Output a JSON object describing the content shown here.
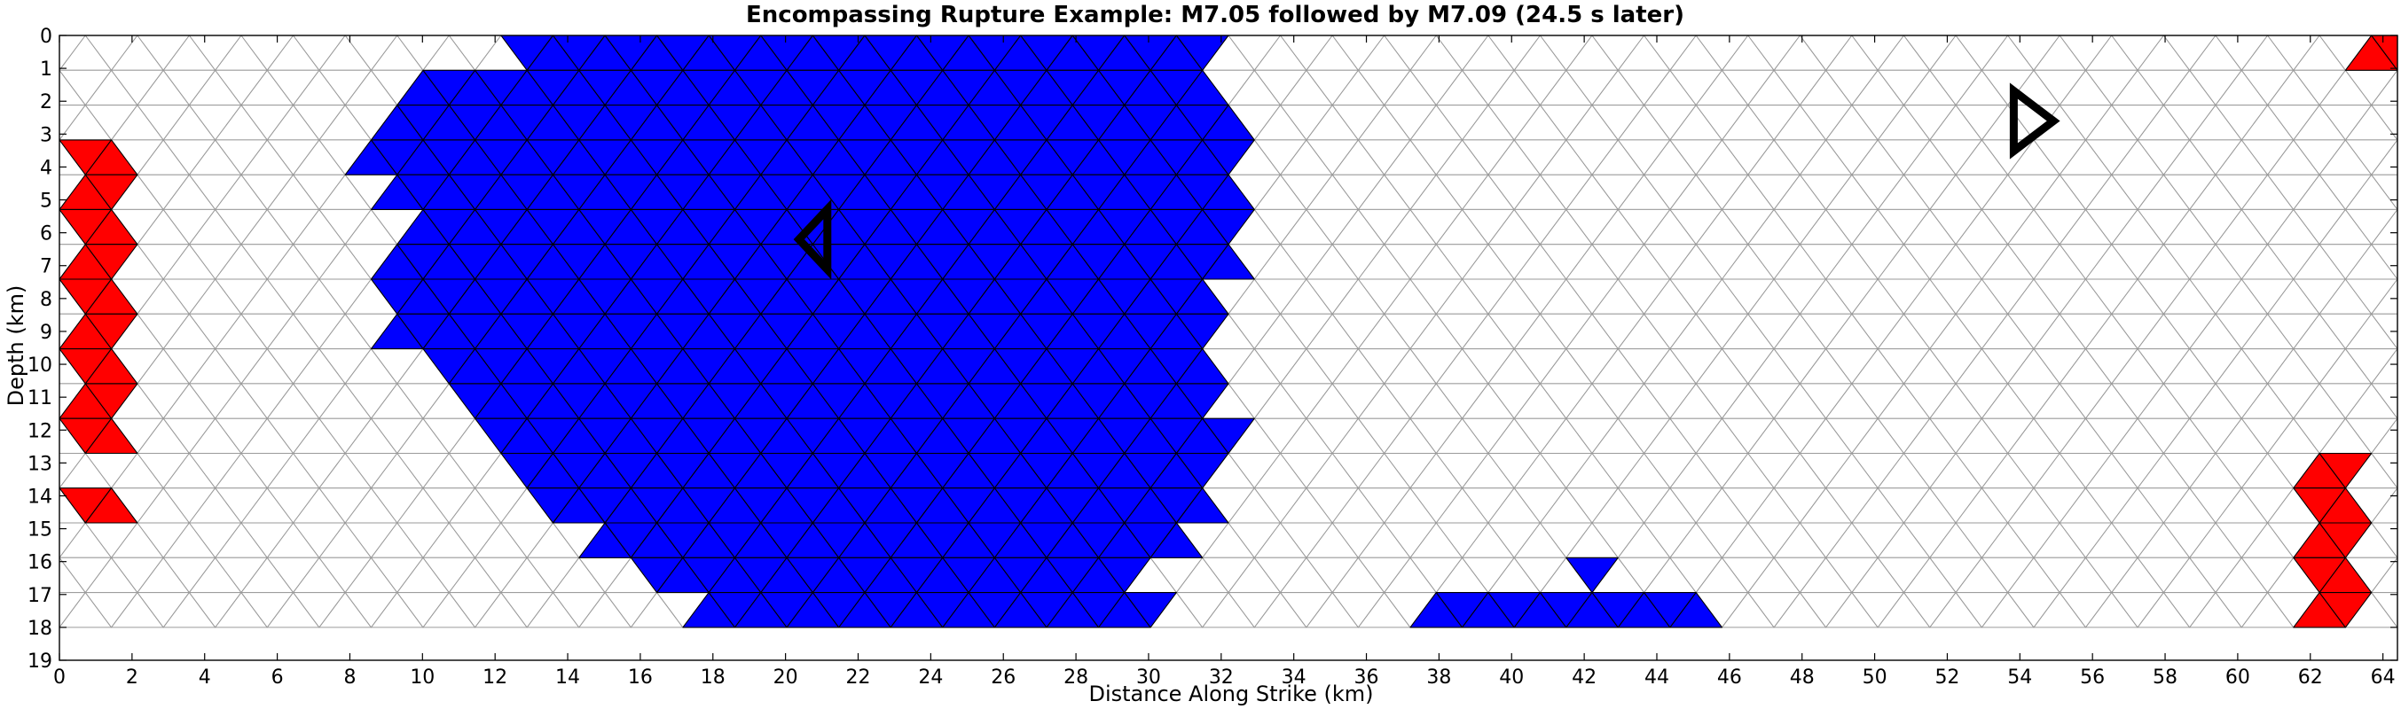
{
  "chart_data": {
    "type": "heatmap",
    "title": "Encompassing Rupture Example: M7.05 followed by M7.09 (24.5 s later)",
    "xlabel": "Distance Along Strike (km)",
    "ylabel": "Depth (km)",
    "xlim": [
      0,
      64.4
    ],
    "ylim": [
      19,
      0
    ],
    "xticks": [
      "0",
      "2",
      "4",
      "6",
      "8",
      "10",
      "12",
      "14",
      "16",
      "18",
      "20",
      "22",
      "24",
      "26",
      "28",
      "30",
      "32",
      "34",
      "36",
      "38",
      "40",
      "42",
      "44",
      "46",
      "48",
      "50",
      "52",
      "54",
      "56",
      "58",
      "60",
      "62",
      "64"
    ],
    "yticks": [
      "0",
      "1",
      "2",
      "3",
      "4",
      "5",
      "6",
      "7",
      "8",
      "9",
      "10",
      "11",
      "12",
      "13",
      "14",
      "15",
      "16",
      "17",
      "18",
      "19"
    ],
    "grid": false,
    "mesh": {
      "x_min_km": 0,
      "x_max_km": 64.4,
      "y_min_km": 0,
      "y_max_km": 18,
      "columns": 45,
      "rows": 17
    },
    "colors": {
      "first_event_only": "#ff0000",
      "both_events": "#ff00ff",
      "second_event_only": "#0000ff",
      "unruptured": "#ffffff",
      "edge_ruptured": "#000000",
      "edge_unruptured": "#9a9a9a"
    },
    "regions": {
      "first_event_columns": [
        [
          0,
          27
        ],
        [
          27,
          26
        ],
        [
          27,
          27
        ],
        [
          31,
          29
        ],
        [
          31,
          32
        ],
        [
          31,
          31
        ],
        [
          31,
          30
        ],
        [
          27,
          29
        ],
        [
          27,
          31
        ],
        [
          25,
          30
        ],
        [
          27,
          29
        ],
        [
          25,
          29
        ],
        [
          27,
          29
        ],
        [
          25,
          29
        ],
        [
          27,
          28
        ],
        [
          25,
          27
        ],
        [
          25,
          27
        ],
        [
          25,
          25
        ],
        [
          27,
          24
        ],
        [
          27,
          25
        ],
        [
          27,
          26
        ],
        [
          29,
          23
        ],
        [
          31,
          23
        ],
        [
          31,
          22
        ],
        [
          31,
          21
        ],
        [
          31,
          22
        ],
        [
          29,
          21
        ],
        [
          31,
          21
        ],
        [
          29,
          21
        ],
        [
          31,
          21
        ],
        [
          29,
          22
        ],
        [
          29,
          19
        ],
        [
          31,
          23
        ],
        [
          29,
          25
        ],
        [
          31,
          23
        ],
        [
          31,
          24
        ],
        [
          31,
          24
        ],
        [
          31,
          25
        ],
        [
          31,
          24
        ],
        [
          33,
          25
        ],
        [
          33,
          25
        ],
        [
          31,
          24
        ],
        [
          34,
          21
        ],
        [
          12,
          19
        ],
        [
          0,
          0
        ]
      ],
      "second_event_rows": [
        [
          17,
          43
        ],
        [
          13,
          43
        ],
        [
          12,
          44
        ],
        [
          11,
          44
        ],
        [
          12,
          44
        ],
        [
          13,
          44
        ],
        [
          12,
          44
        ],
        [
          12,
          43
        ],
        [
          12,
          43
        ],
        [
          14,
          43
        ],
        [
          15,
          43
        ],
        [
          16,
          44
        ],
        [
          17,
          43
        ],
        [
          18,
          43
        ],
        [
          20,
          42
        ],
        [
          22,
          40
        ],
        [
          24,
          39
        ]
      ],
      "second_event_only_cells": [
        [
          40,
          16
        ],
        [
          41,
          16
        ],
        [
          41,
          17
        ],
        [
          42,
          17
        ],
        [
          43,
          17
        ],
        [
          44,
          17
        ],
        [
          45,
          17
        ],
        [
          46,
          17
        ],
        [
          47,
          17
        ],
        [
          48,
          17
        ],
        [
          50,
          17
        ],
        [
          51,
          17
        ],
        [
          52,
          17
        ],
        [
          53,
          17
        ],
        [
          54,
          17
        ],
        [
          55,
          17
        ],
        [
          56,
          17
        ],
        [
          57,
          17
        ],
        [
          58,
          17
        ],
        [
          52,
          16
        ],
        [
          53,
          16
        ],
        [
          54,
          16
        ],
        [
          55,
          16
        ],
        [
          56,
          16
        ],
        [
          57,
          16
        ],
        [
          58,
          15
        ],
        [
          58,
          16
        ],
        [
          59,
          16
        ],
        [
          60,
          16
        ],
        [
          61,
          16
        ],
        [
          62,
          16
        ]
      ],
      "unruptured_cells": [
        [
          0,
          0
        ],
        [
          1,
          0
        ],
        [
          0,
          1
        ],
        [
          1,
          1
        ],
        [
          0,
          2
        ],
        [
          1,
          2
        ],
        [
          0,
          12
        ],
        [
          1,
          12
        ],
        [
          2,
          12
        ],
        [
          0,
          14
        ],
        [
          1,
          14
        ],
        [
          0,
          15
        ],
        [
          1,
          15
        ],
        [
          0,
          16
        ],
        [
          1,
          16
        ],
        [
          2,
          16
        ],
        [
          3,
          16
        ],
        [
          0,
          17
        ],
        [
          1,
          17
        ],
        [
          2,
          17
        ],
        [
          3,
          17
        ],
        [
          4,
          17
        ],
        [
          5,
          17
        ],
        [
          61,
          0
        ],
        [
          62,
          0
        ],
        [
          63,
          0
        ],
        [
          64,
          0
        ],
        [
          62,
          1
        ],
        [
          63,
          1
        ],
        [
          64,
          1
        ],
        [
          63,
          2
        ],
        [
          64,
          2
        ],
        [
          63,
          4
        ],
        [
          64,
          4
        ],
        [
          63,
          7
        ],
        [
          64,
          7
        ],
        [
          63,
          8
        ],
        [
          64,
          8
        ],
        [
          63,
          9
        ],
        [
          64,
          9
        ],
        [
          63,
          10
        ],
        [
          64,
          10
        ],
        [
          63,
          11
        ],
        [
          64,
          11
        ],
        [
          62,
          12
        ],
        [
          63,
          12
        ],
        [
          64,
          12
        ],
        [
          60,
          13
        ],
        [
          61,
          13
        ],
        [
          62,
          13
        ],
        [
          63,
          13
        ],
        [
          64,
          13
        ],
        [
          59,
          14
        ],
        [
          60,
          14
        ],
        [
          61,
          14
        ],
        [
          62,
          14
        ],
        [
          63,
          14
        ],
        [
          64,
          14
        ],
        [
          59,
          15
        ],
        [
          60,
          15
        ],
        [
          61,
          15
        ],
        [
          62,
          15
        ],
        [
          63,
          15
        ],
        [
          64,
          15
        ],
        [
          63,
          16
        ],
        [
          64,
          16
        ],
        [
          59,
          17
        ],
        [
          60,
          17
        ],
        [
          61,
          17
        ],
        [
          62,
          17
        ],
        [
          63,
          17
        ],
        [
          64,
          17
        ]
      ]
    },
    "markers": [
      {
        "event": "M7.05",
        "shape": "triangle-left",
        "x_km": 20.8,
        "y_km": 6.2
      },
      {
        "event": "M7.09",
        "shape": "triangle-right",
        "x_km": 54.3,
        "y_km": 2.6
      }
    ]
  }
}
